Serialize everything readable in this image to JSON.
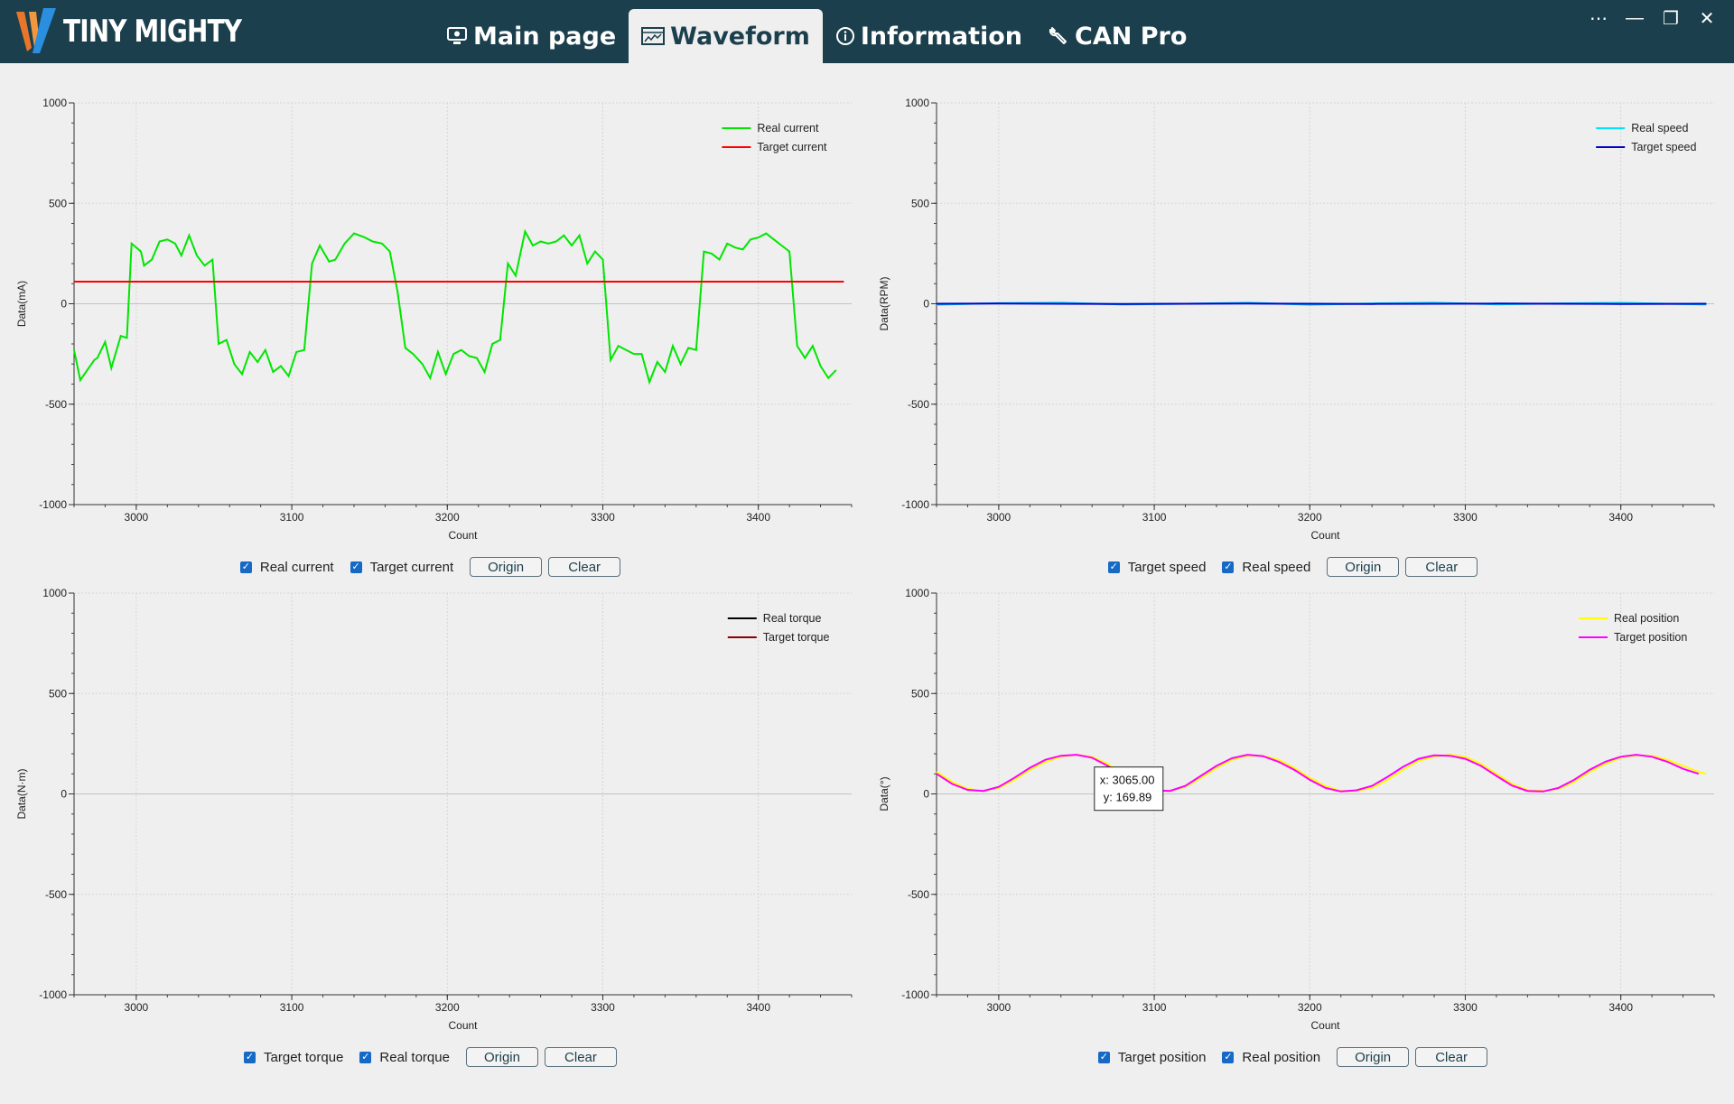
{
  "app": {
    "brand": "TINY MIGHTY",
    "tabs": [
      {
        "label": "Main page",
        "icon": "monitor-icon"
      },
      {
        "label": "Waveform",
        "icon": "waveform-icon",
        "active": true
      },
      {
        "label": "Information",
        "icon": "info-icon"
      },
      {
        "label": "CAN Pro",
        "icon": "wrench-icon"
      }
    ],
    "colors": {
      "titlebar": "#1b3f4c",
      "background": "#efefef"
    }
  },
  "panels": [
    {
      "checkboxes": [
        "Real current",
        "Target current"
      ],
      "buttons": {
        "origin": "Origin",
        "clear": "Clear"
      }
    },
    {
      "checkboxes": [
        "Target speed",
        "Real speed"
      ],
      "buttons": {
        "origin": "Origin",
        "clear": "Clear"
      }
    },
    {
      "checkboxes": [
        "Target torque",
        "Real torque"
      ],
      "buttons": {
        "origin": "Origin",
        "clear": "Clear"
      }
    },
    {
      "checkboxes": [
        "Target position",
        "Real position"
      ],
      "buttons": {
        "origin": "Origin",
        "clear": "Clear"
      }
    }
  ],
  "chart_data": [
    {
      "type": "line",
      "xlabel": "Count",
      "ylabel": "Data(mA)",
      "xlim": [
        2960,
        3460
      ],
      "ylim": [
        -1000,
        1000
      ],
      "xticks": [
        3000,
        3100,
        3200,
        3300,
        3400
      ],
      "yticks": [
        -1000,
        -500,
        0,
        500,
        1000
      ],
      "grid": true,
      "legend": "top-right",
      "series": [
        {
          "name": "Real current",
          "color": "#00e600",
          "points": [
            [
              2960,
              -230
            ],
            [
              2964,
              -380
            ],
            [
              2973,
              -280
            ],
            [
              2975,
              -270
            ],
            [
              2980,
              -190
            ],
            [
              2984,
              -320
            ],
            [
              2990,
              -160
            ],
            [
              2994,
              -170
            ],
            [
              2997,
              300
            ],
            [
              3003,
              260
            ],
            [
              3005,
              190
            ],
            [
              3010,
              220
            ],
            [
              3015,
              310
            ],
            [
              3020,
              320
            ],
            [
              3025,
              300
            ],
            [
              3029,
              240
            ],
            [
              3034,
              340
            ],
            [
              3039,
              240
            ],
            [
              3044,
              190
            ],
            [
              3049,
              220
            ],
            [
              3053,
              -200
            ],
            [
              3058,
              -180
            ],
            [
              3063,
              -300
            ],
            [
              3068,
              -350
            ],
            [
              3073,
              -240
            ],
            [
              3078,
              -290
            ],
            [
              3083,
              -230
            ],
            [
              3088,
              -340
            ],
            [
              3093,
              -310
            ],
            [
              3098,
              -360
            ],
            [
              3103,
              -240
            ],
            [
              3108,
              -230
            ],
            [
              3113,
              200
            ],
            [
              3118,
              290
            ],
            [
              3124,
              210
            ],
            [
              3128,
              220
            ],
            [
              3134,
              300
            ],
            [
              3140,
              350
            ],
            [
              3147,
              330
            ],
            [
              3152,
              310
            ],
            [
              3158,
              300
            ],
            [
              3163,
              260
            ],
            [
              3168,
              60
            ],
            [
              3173,
              -220
            ],
            [
              3178,
              -250
            ],
            [
              3184,
              -300
            ],
            [
              3189,
              -370
            ],
            [
              3194,
              -240
            ],
            [
              3199,
              -350
            ],
            [
              3204,
              -250
            ],
            [
              3209,
              -230
            ],
            [
              3214,
              -260
            ],
            [
              3219,
              -270
            ],
            [
              3224,
              -340
            ],
            [
              3229,
              -200
            ],
            [
              3234,
              -180
            ],
            [
              3239,
              200
            ],
            [
              3244,
              140
            ],
            [
              3250,
              360
            ],
            [
              3255,
              290
            ],
            [
              3260,
              310
            ],
            [
              3265,
              300
            ],
            [
              3270,
              310
            ],
            [
              3275,
              340
            ],
            [
              3280,
              290
            ],
            [
              3285,
              340
            ],
            [
              3290,
              200
            ],
            [
              3295,
              260
            ],
            [
              3300,
              220
            ],
            [
              3305,
              -280
            ],
            [
              3310,
              -210
            ],
            [
              3315,
              -230
            ],
            [
              3320,
              -250
            ],
            [
              3325,
              -250
            ],
            [
              3330,
              -390
            ],
            [
              3335,
              -290
            ],
            [
              3340,
              -340
            ],
            [
              3345,
              -210
            ],
            [
              3350,
              -300
            ],
            [
              3355,
              -220
            ],
            [
              3360,
              -230
            ],
            [
              3365,
              260
            ],
            [
              3370,
              250
            ],
            [
              3375,
              220
            ],
            [
              3380,
              300
            ],
            [
              3385,
              280
            ],
            [
              3390,
              270
            ],
            [
              3395,
              320
            ],
            [
              3400,
              330
            ],
            [
              3405,
              350
            ],
            [
              3410,
              320
            ],
            [
              3415,
              290
            ],
            [
              3420,
              260
            ],
            [
              3425,
              -210
            ],
            [
              3430,
              -270
            ],
            [
              3435,
              -210
            ],
            [
              3440,
              -310
            ],
            [
              3445,
              -370
            ],
            [
              3450,
              -330
            ]
          ]
        },
        {
          "name": "Target current",
          "color": "#ff0000",
          "points": [
            [
              2960,
              110
            ],
            [
              3455,
              110
            ]
          ]
        }
      ]
    },
    {
      "type": "line",
      "xlabel": "Count",
      "ylabel": "Data(RPM)",
      "xlim": [
        2960,
        3460
      ],
      "ylim": [
        -1000,
        1000
      ],
      "xticks": [
        3000,
        3100,
        3200,
        3300,
        3400
      ],
      "yticks": [
        -1000,
        -500,
        0,
        500,
        1000
      ],
      "grid": true,
      "legend": "top-right",
      "series": [
        {
          "name": "Real speed",
          "color": "#00e5ff",
          "points": [
            [
              2960,
              -5
            ],
            [
              3000,
              3
            ],
            [
              3040,
              6
            ],
            [
              3080,
              -4
            ],
            [
              3120,
              0
            ],
            [
              3160,
              6
            ],
            [
              3200,
              -5
            ],
            [
              3240,
              2
            ],
            [
              3280,
              6
            ],
            [
              3320,
              -3
            ],
            [
              3360,
              2
            ],
            [
              3400,
              5
            ],
            [
              3440,
              -2
            ],
            [
              3455,
              -4
            ]
          ]
        },
        {
          "name": "Target speed",
          "color": "#0000c8",
          "points": [
            [
              2960,
              0
            ],
            [
              3000,
              1
            ],
            [
              3040,
              0
            ],
            [
              3080,
              -1
            ],
            [
              3120,
              0
            ],
            [
              3160,
              1
            ],
            [
              3200,
              0
            ],
            [
              3240,
              -1
            ],
            [
              3280,
              0
            ],
            [
              3320,
              1
            ],
            [
              3360,
              0
            ],
            [
              3400,
              -1
            ],
            [
              3455,
              0
            ]
          ]
        }
      ]
    },
    {
      "type": "line",
      "xlabel": "Count",
      "ylabel": "Data(N·m)",
      "xlim": [
        2960,
        3460
      ],
      "ylim": [
        -1000,
        1000
      ],
      "xticks": [
        3000,
        3100,
        3200,
        3300,
        3400
      ],
      "yticks": [
        -1000,
        -500,
        0,
        500,
        1000
      ],
      "grid": true,
      "legend": "top-right",
      "series": [
        {
          "name": "Real torque",
          "color": "#000000",
          "points": []
        },
        {
          "name": "Target torque",
          "color": "#8b0000",
          "points": []
        }
      ]
    },
    {
      "type": "line",
      "xlabel": "Count",
      "ylabel": "Data(°)",
      "xlim": [
        2960,
        3460
      ],
      "ylim": [
        -1000,
        1000
      ],
      "xticks": [
        3000,
        3100,
        3200,
        3300,
        3400
      ],
      "yticks": [
        -1000,
        -500,
        0,
        500,
        1000
      ],
      "grid": true,
      "legend": "top-right",
      "tooltip": {
        "x_label": "x: 3065.00",
        "y_label": "y: 169.89",
        "x": 3065,
        "y": 169.89
      },
      "series": [
        {
          "name": "Real position",
          "color": "#ffff00",
          "points": [
            [
              2960,
              110
            ],
            [
              2970,
              60
            ],
            [
              2980,
              25
            ],
            [
              2990,
              15
            ],
            [
              3000,
              30
            ],
            [
              3010,
              70
            ],
            [
              3020,
              120
            ],
            [
              3030,
              160
            ],
            [
              3040,
              185
            ],
            [
              3050,
              195
            ],
            [
              3060,
              185
            ],
            [
              3070,
              150
            ],
            [
              3080,
              100
            ],
            [
              3090,
              50
            ],
            [
              3100,
              20
            ],
            [
              3110,
              15
            ],
            [
              3120,
              35
            ],
            [
              3130,
              80
            ],
            [
              3140,
              130
            ],
            [
              3150,
              170
            ],
            [
              3160,
              190
            ],
            [
              3170,
              190
            ],
            [
              3180,
              170
            ],
            [
              3190,
              130
            ],
            [
              3200,
              80
            ],
            [
              3210,
              40
            ],
            [
              3220,
              15
            ],
            [
              3230,
              15
            ],
            [
              3240,
              30
            ],
            [
              3250,
              70
            ],
            [
              3260,
              120
            ],
            [
              3270,
              165
            ],
            [
              3280,
              185
            ],
            [
              3290,
              195
            ],
            [
              3300,
              185
            ],
            [
              3310,
              150
            ],
            [
              3320,
              100
            ],
            [
              3330,
              50
            ],
            [
              3340,
              20
            ],
            [
              3350,
              15
            ],
            [
              3360,
              25
            ],
            [
              3370,
              60
            ],
            [
              3380,
              110
            ],
            [
              3390,
              150
            ],
            [
              3400,
              180
            ],
            [
              3410,
              192
            ],
            [
              3420,
              190
            ],
            [
              3430,
              170
            ],
            [
              3440,
              140
            ],
            [
              3450,
              110
            ],
            [
              3455,
              100
            ]
          ]
        },
        {
          "name": "Target position",
          "color": "#ff00ff",
          "points": [
            [
              2960,
              100
            ],
            [
              2970,
              50
            ],
            [
              2980,
              20
            ],
            [
              2990,
              15
            ],
            [
              3000,
              35
            ],
            [
              3010,
              80
            ],
            [
              3020,
              130
            ],
            [
              3030,
              170
            ],
            [
              3040,
              190
            ],
            [
              3050,
              195
            ],
            [
              3060,
              180
            ],
            [
              3070,
              140
            ],
            [
              3080,
              90
            ],
            [
              3090,
              45
            ],
            [
              3100,
              18
            ],
            [
              3110,
              15
            ],
            [
              3120,
              40
            ],
            [
              3130,
              90
            ],
            [
              3140,
              140
            ],
            [
              3150,
              178
            ],
            [
              3160,
              195
            ],
            [
              3170,
              188
            ],
            [
              3180,
              160
            ],
            [
              3190,
              120
            ],
            [
              3200,
              70
            ],
            [
              3210,
              30
            ],
            [
              3220,
              12
            ],
            [
              3230,
              18
            ],
            [
              3240,
              40
            ],
            [
              3250,
              85
            ],
            [
              3260,
              135
            ],
            [
              3270,
              175
            ],
            [
              3280,
              192
            ],
            [
              3290,
              190
            ],
            [
              3300,
              175
            ],
            [
              3310,
              140
            ],
            [
              3320,
              90
            ],
            [
              3330,
              42
            ],
            [
              3340,
              15
            ],
            [
              3350,
              12
            ],
            [
              3360,
              30
            ],
            [
              3370,
              70
            ],
            [
              3380,
              120
            ],
            [
              3390,
              160
            ],
            [
              3400,
              185
            ],
            [
              3410,
              195
            ],
            [
              3420,
              185
            ],
            [
              3430,
              160
            ],
            [
              3440,
              125
            ],
            [
              3450,
              100
            ]
          ]
        }
      ]
    }
  ]
}
